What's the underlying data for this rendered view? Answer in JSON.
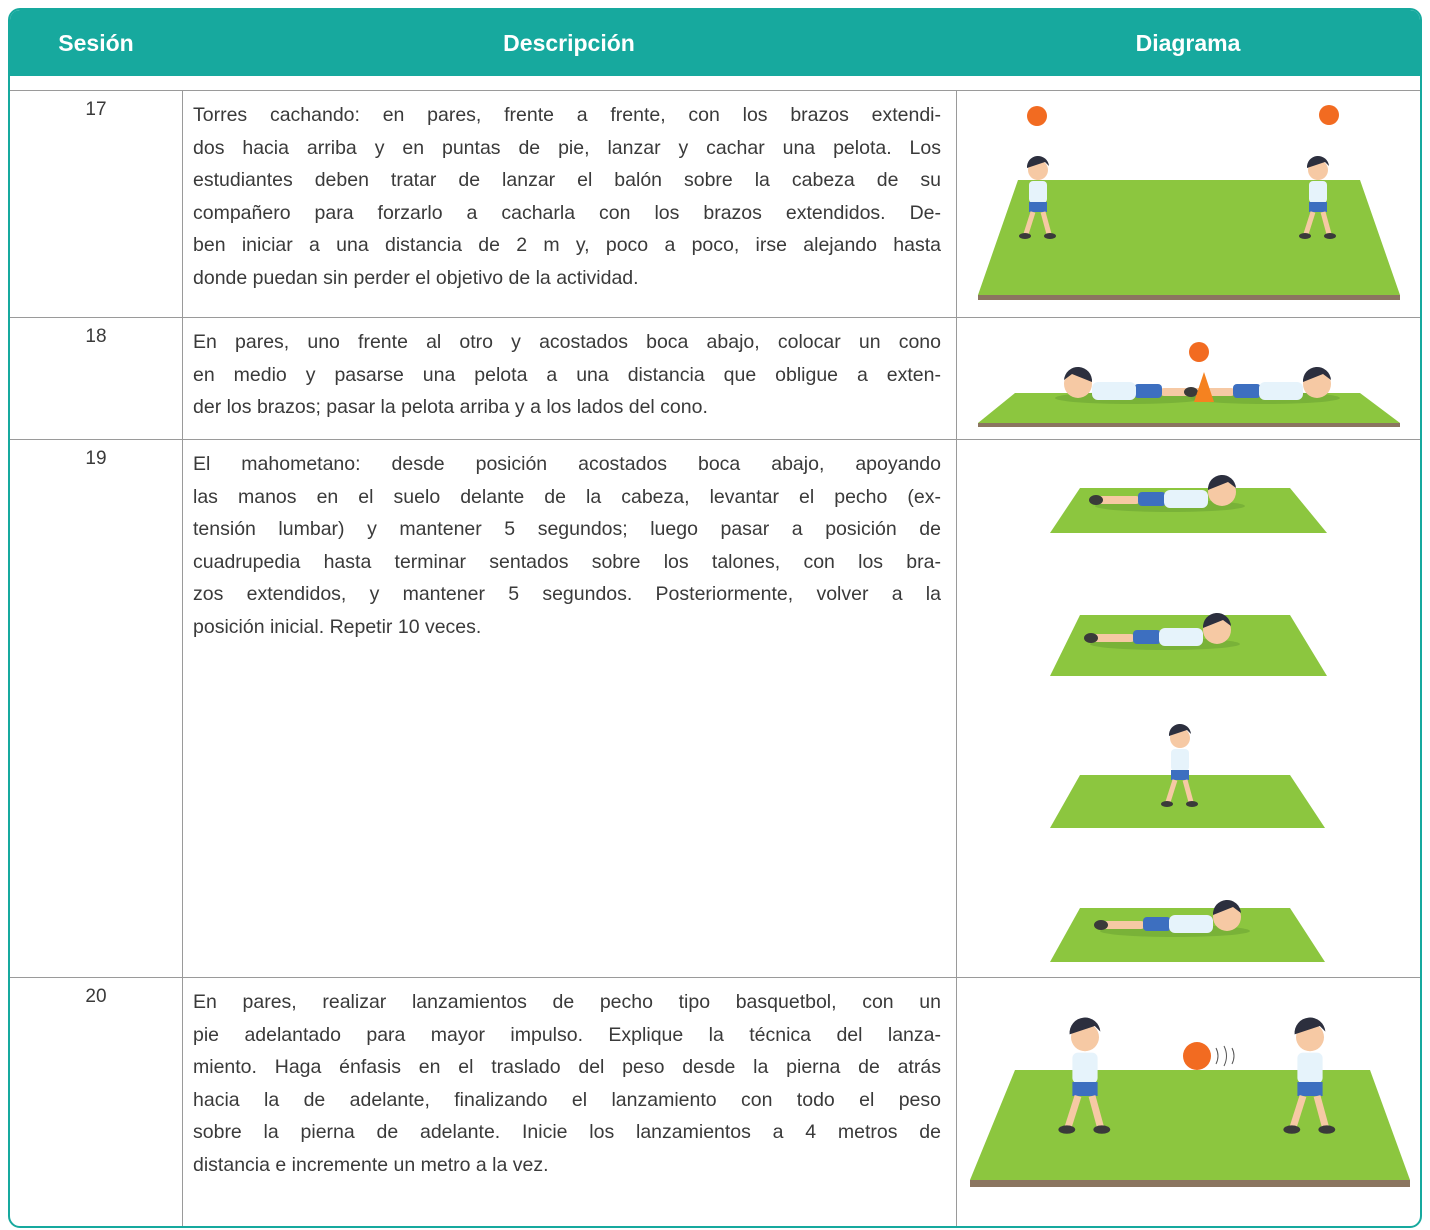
{
  "header": {
    "columns": [
      "Sesión",
      "Descripción",
      "Diagrama"
    ]
  },
  "table": {
    "rows": [
      {
        "session": "17",
        "description": [
          "Torres cachando: en pares, frente a frente, con los brazos extendi-",
          "dos hacia arriba y en puntas de pie, lanzar y cachar una pelota. Los",
          "estudiantes deben tratar de lanzar el balón sobre la cabeza de su",
          "compañero para forzarlo a cacharla con los brazos extendidos. De-",
          "ben iniciar a una distancia de 2 m y, poco a poco, irse alejando hasta",
          "donde puedan sin perder el objetivo de la actividad."
        ]
      },
      {
        "session": "18",
        "description": [
          "En pares, uno frente al otro y acostados boca abajo, colocar un cono",
          "en medio y pasarse una pelota a una distancia que obligue a exten-",
          "der los brazos; pasar la pelota arriba y a los lados del cono."
        ]
      },
      {
        "session": "19",
        "description": [
          "El mahometano: desde posición acostados boca abajo, apoyando",
          "las manos en el suelo delante de la cabeza, levantar el pecho (ex-",
          "tensión lumbar) y mantener 5 segundos; luego pasar a posición de",
          "cuadrupedia hasta terminar sentados sobre los talones, con los bra-",
          "zos extendidos, y mantener 5 segundos. Posteriormente, volver a la",
          "posición inicial. Repetir 10 veces."
        ]
      },
      {
        "session": "20",
        "description": [
          "En pares, realizar lanzamientos de pecho tipo basquetbol, con un",
          "pie adelantado para mayor impulso. Explique la técnica del lanza-",
          "miento. Haga énfasis en el traslado del peso desde la pierna de atrás",
          "hacia la de adelante, finalizando el lanzamiento con todo el peso",
          "sobre la pierna de adelante. Inicie los lanzamientos a 4 metros de",
          "distancia e incremente un metro a la vez."
        ]
      }
    ]
  }
}
